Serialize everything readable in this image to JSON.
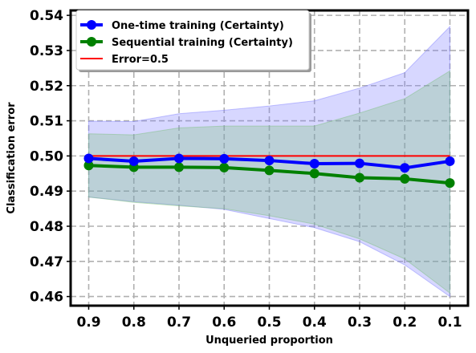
{
  "chart_data": {
    "type": "line",
    "title": "",
    "xlabel": "Unqueried proportion",
    "ylabel": "Classification error",
    "x": [
      0.9,
      0.8,
      0.7,
      0.6,
      0.5,
      0.4,
      0.3,
      0.2,
      0.1
    ],
    "x_tick_labels": [
      "0.9",
      "0.8",
      "0.7",
      "0.6",
      "0.5",
      "0.4",
      "0.3",
      "0.2",
      "0.1"
    ],
    "x_reversed": true,
    "xlim": [
      0.94,
      0.06
    ],
    "ylim": [
      0.4574,
      0.5414
    ],
    "y_ticks": [
      0.46,
      0.47,
      0.48,
      0.49,
      0.5,
      0.51,
      0.52,
      0.53,
      0.54
    ],
    "y_tick_labels": [
      "0.46",
      "0.47",
      "0.48",
      "0.49",
      "0.50",
      "0.51",
      "0.52",
      "0.53",
      "0.54"
    ],
    "grid": true,
    "legend_position": "top-left",
    "series": [
      {
        "name": "One-time training (Certainty)",
        "color": "#0000ff",
        "marker": "circle",
        "values": [
          0.4993,
          0.4985,
          0.4993,
          0.4992,
          0.4987,
          0.4978,
          0.4979,
          0.4966,
          0.4985
        ],
        "band_upper": [
          0.5099,
          0.5098,
          0.512,
          0.513,
          0.5142,
          0.5157,
          0.5193,
          0.5237,
          0.5368
        ],
        "band_lower": [
          0.4883,
          0.487,
          0.486,
          0.4848,
          0.4822,
          0.4796,
          0.4756,
          0.469,
          0.46
        ],
        "band_color": "#7b7bff"
      },
      {
        "name": "Sequential training (Certainty)",
        "color": "#008000",
        "marker": "circle",
        "values": [
          0.4973,
          0.4968,
          0.4968,
          0.4967,
          0.4959,
          0.495,
          0.4938,
          0.4935,
          0.4923
        ],
        "band_upper": [
          0.5063,
          0.506,
          0.508,
          0.5085,
          0.5085,
          0.5085,
          0.5122,
          0.5163,
          0.5242
        ],
        "band_lower": [
          0.4883,
          0.4868,
          0.4858,
          0.485,
          0.483,
          0.4806,
          0.4764,
          0.4707,
          0.461
        ],
        "band_color": "#7bbf7b"
      },
      {
        "name": "Error=0.5",
        "color": "#ff0000",
        "marker": "none",
        "values": [
          0.5,
          0.5,
          0.5,
          0.5,
          0.5,
          0.5,
          0.5,
          0.5,
          0.5
        ]
      }
    ]
  }
}
